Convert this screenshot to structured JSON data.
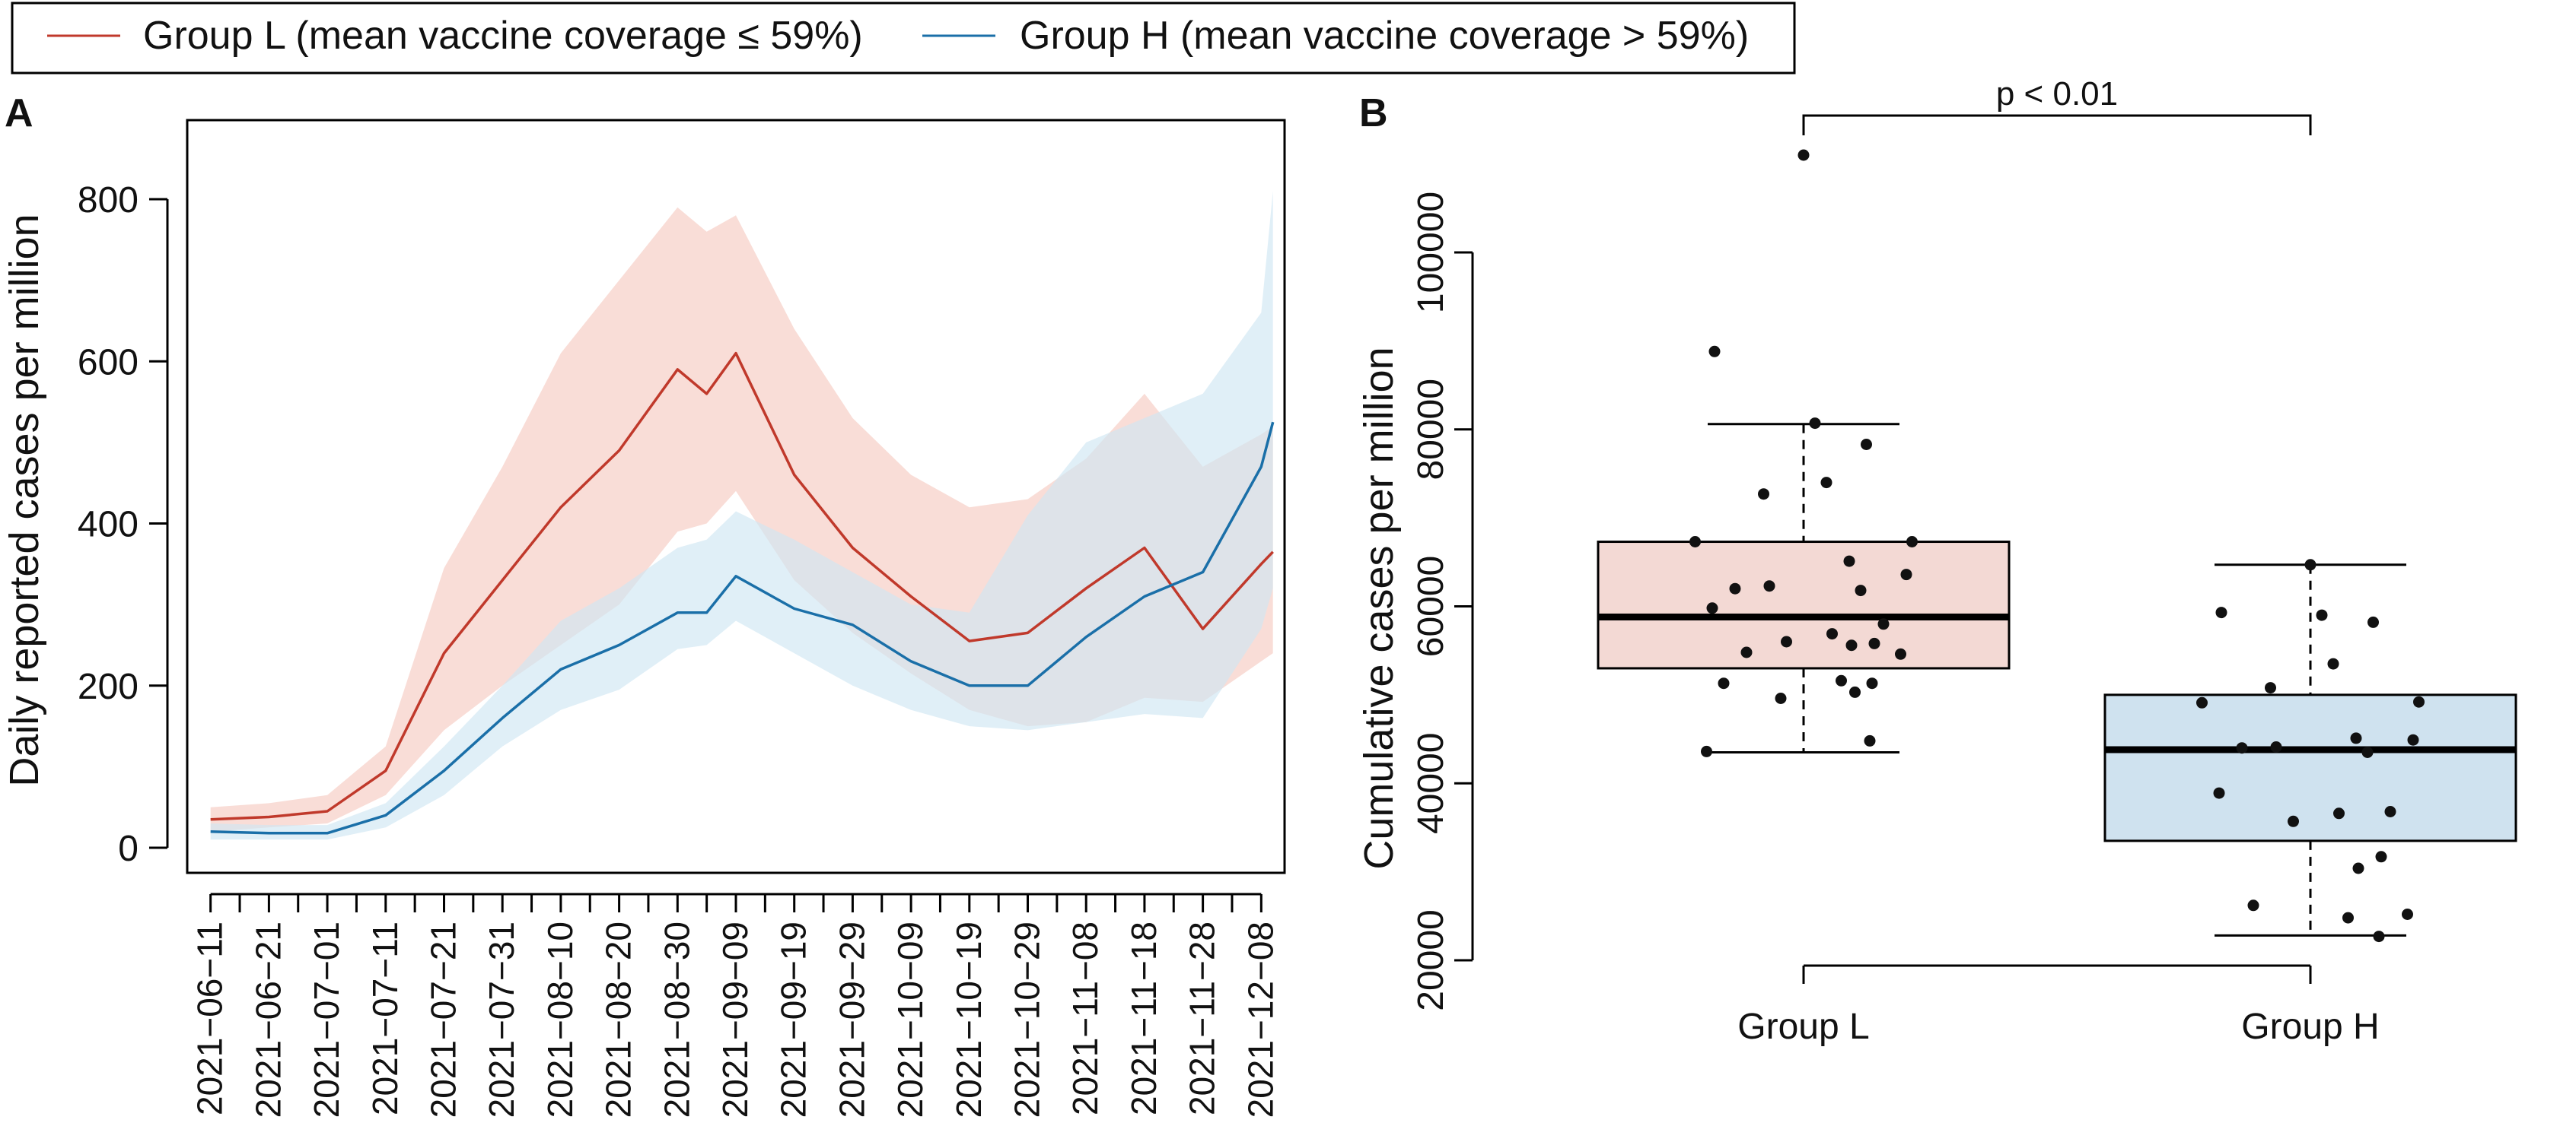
{
  "legend": {
    "items": [
      {
        "label": "Group L (mean vaccine coverage ≤ 59%)",
        "color": "#c0392b"
      },
      {
        "label": "Group H (mean vaccine coverage > 59%)",
        "color": "#1a6fa8"
      }
    ]
  },
  "panels": {
    "a": {
      "label": "A"
    },
    "b": {
      "label": "B"
    }
  },
  "colors": {
    "group_l_line": "#c0392b",
    "group_l_band": "#f7d2c9",
    "group_h_line": "#1a6fa8",
    "group_h_band": "#cfe6f2",
    "group_l_box": "#f3d9d4",
    "group_h_box": "#cfe2ef"
  },
  "chart_data": [
    {
      "type": "line",
      "panel": "A",
      "ylabel": "Daily reported cases per million",
      "xlabel": "",
      "ylim": [
        0,
        880
      ],
      "yticks": [
        0,
        200,
        400,
        600,
        800
      ],
      "xtick_labels": [
        "2021−06−11",
        "2021−06−21",
        "2021−07−01",
        "2021−07−11",
        "2021−07−21",
        "2021−07−31",
        "2021−08−10",
        "2021−08−20",
        "2021−08−30",
        "2021−09−09",
        "2021−09−19",
        "2021−09−29",
        "2021−10−09",
        "2021−10−19",
        "2021−10−29",
        "2021−11−08",
        "2021−11−18",
        "2021−11−28",
        "2021−12−08"
      ],
      "x": [
        "2021-06-11",
        "2021-06-21",
        "2021-07-01",
        "2021-07-11",
        "2021-07-21",
        "2021-07-31",
        "2021-08-10",
        "2021-08-20",
        "2021-08-30",
        "2021-09-04",
        "2021-09-09",
        "2021-09-19",
        "2021-09-29",
        "2021-10-09",
        "2021-10-19",
        "2021-10-29",
        "2021-11-08",
        "2021-11-18",
        "2021-11-28",
        "2021-12-08",
        "2021-12-10"
      ],
      "series": [
        {
          "name": "Group L (mean vaccine coverage ≤ 59%)",
          "values": [
            35,
            38,
            45,
            95,
            240,
            330,
            420,
            490,
            590,
            560,
            610,
            460,
            370,
            310,
            255,
            265,
            320,
            370,
            270,
            350,
            365
          ],
          "band_low": [
            20,
            25,
            30,
            65,
            145,
            200,
            250,
            300,
            390,
            400,
            440,
            330,
            265,
            215,
            170,
            150,
            155,
            185,
            180,
            230,
            240
          ],
          "band_high": [
            50,
            55,
            65,
            125,
            345,
            470,
            610,
            700,
            790,
            760,
            780,
            640,
            530,
            460,
            420,
            430,
            480,
            560,
            470,
            510,
            520
          ]
        },
        {
          "name": "Group H (mean vaccine coverage > 59%)",
          "values": [
            20,
            18,
            18,
            40,
            95,
            160,
            220,
            250,
            290,
            290,
            335,
            295,
            275,
            230,
            200,
            200,
            260,
            310,
            340,
            470,
            525
          ],
          "band_low": [
            10,
            10,
            10,
            25,
            65,
            125,
            170,
            195,
            245,
            250,
            280,
            240,
            200,
            170,
            150,
            145,
            155,
            165,
            160,
            270,
            320
          ],
          "band_high": [
            30,
            28,
            28,
            55,
            125,
            200,
            280,
            320,
            370,
            380,
            415,
            380,
            340,
            300,
            290,
            410,
            500,
            530,
            560,
            660,
            810
          ]
        }
      ]
    },
    {
      "type": "box",
      "panel": "B",
      "ylabel": "Cumulative cases per million",
      "ylim": [
        20000,
        110000
      ],
      "yticks": [
        20000,
        40000,
        60000,
        80000,
        100000
      ],
      "annotation": "p < 0.01",
      "categories": [
        "Group L",
        "Group H"
      ],
      "boxes": [
        {
          "name": "Group L",
          "whisker_low": 43500,
          "q1": 53000,
          "median": 58800,
          "q3": 67300,
          "whisker_high": 80600,
          "points": [
            111000,
            88800,
            80700,
            78300,
            74000,
            72700,
            67300,
            67300,
            65100,
            63600,
            62300,
            62000,
            61800,
            59800,
            58000,
            56900,
            56000,
            55800,
            55600,
            54800,
            54600,
            51600,
            51300,
            51300,
            50300,
            49600,
            44800,
            43600
          ]
        },
        {
          "name": "Group H",
          "whisker_low": 22800,
          "q1": 33500,
          "median": 43800,
          "q3": 50000,
          "whisker_high": 64700,
          "points": [
            64700,
            59300,
            59000,
            58200,
            53500,
            50800,
            49200,
            49100,
            45100,
            44900,
            44100,
            44000,
            43500,
            38900,
            36800,
            36600,
            35700,
            31700,
            30400,
            26200,
            25200,
            24800,
            22700
          ]
        }
      ]
    }
  ]
}
